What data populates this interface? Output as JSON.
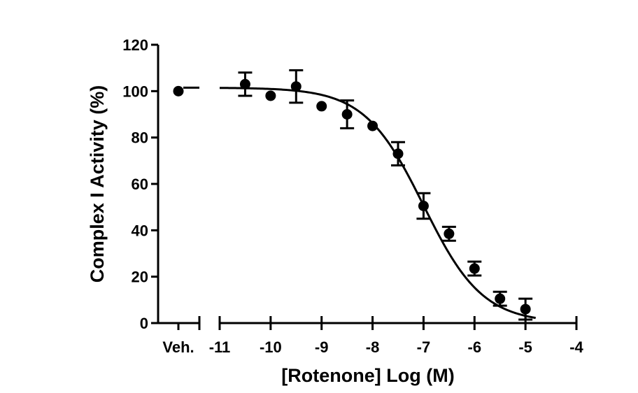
{
  "chart_data": {
    "type": "scatter",
    "title": "",
    "xlabel": "[Rotenone] Log (M)",
    "ylabel": "Complex I Activity (%)",
    "ylim": [
      0,
      120
    ],
    "xlim": [
      -11,
      -4
    ],
    "y_ticks": [
      0,
      20,
      40,
      60,
      80,
      100,
      120
    ],
    "x_ticks": [
      -11,
      -10,
      -9,
      -8,
      -7,
      -6,
      -5,
      -4
    ],
    "y_tick_labels": [
      "0",
      "20",
      "40",
      "60",
      "80",
      "100",
      "120"
    ],
    "x_tick_labels": [
      "-11",
      "-10",
      "-9",
      "-8",
      "-7",
      "-6",
      "-5",
      "-4"
    ],
    "vehicle_label": "Veh.",
    "vehicle": {
      "y": 100,
      "err": 0
    },
    "points": [
      {
        "x": -10.5,
        "y": 103,
        "err": 5
      },
      {
        "x": -10.0,
        "y": 98,
        "err": 0
      },
      {
        "x": -9.5,
        "y": 102,
        "err": 7
      },
      {
        "x": -9.0,
        "y": 93.5,
        "err": 0
      },
      {
        "x": -8.5,
        "y": 90,
        "err": 6
      },
      {
        "x": -8.0,
        "y": 85,
        "err": 0
      },
      {
        "x": -7.5,
        "y": 73,
        "err": 5
      },
      {
        "x": -7.0,
        "y": 50.5,
        "err": 5.5
      },
      {
        "x": -6.5,
        "y": 38.5,
        "err": 3
      },
      {
        "x": -6.0,
        "y": 23.5,
        "err": 3
      },
      {
        "x": -5.5,
        "y": 10.5,
        "err": 3
      },
      {
        "x": -5.0,
        "y": 6,
        "err": 4.5
      }
    ],
    "fit": {
      "model": "four-parameter logistic",
      "top": 101.5,
      "bottom": 0,
      "logIC50": -7.0,
      "hillslope": -0.75
    },
    "grid": false,
    "legend": "none"
  }
}
